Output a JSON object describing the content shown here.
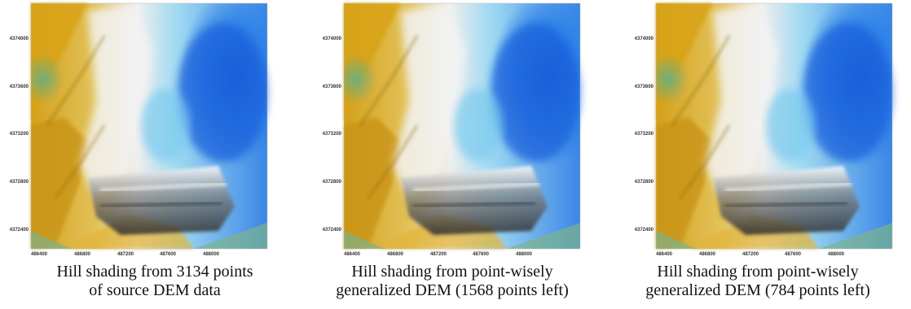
{
  "panels": [
    {
      "caption_lines": [
        "Hill shading from 3134 points",
        "of source DEM data"
      ],
      "x_ticks": [
        "486400",
        "486800",
        "487200",
        "487600",
        "488000"
      ],
      "y_ticks": [
        "4374000",
        "4373600",
        "4373200",
        "4372800",
        "4372400"
      ]
    },
    {
      "caption_lines": [
        "Hill shading from point-wisely",
        "generalized DEM (1568 points left)"
      ],
      "x_ticks": [
        "486400",
        "486800",
        "487200",
        "487600",
        "488000"
      ],
      "y_ticks": [
        "4374000",
        "4373600",
        "4373200",
        "4372800",
        "4372400"
      ]
    },
    {
      "caption_lines": [
        "Hill shading from point-wisely",
        "generalized DEM (784 points left)"
      ],
      "x_ticks": [
        "486400",
        "486800",
        "487200",
        "487600",
        "488000"
      ],
      "y_ticks": [
        "4374000",
        "4373600",
        "4373200",
        "4372800",
        "4372400"
      ]
    }
  ],
  "colors": {
    "low_green": "#6fae7a",
    "ochre": "#d9a21a",
    "white_ridge": "#f2f2f2",
    "light_cyan": "#8fd3f0",
    "deep_blue": "#1f6fe0",
    "shadow": "#3a3a3a"
  }
}
